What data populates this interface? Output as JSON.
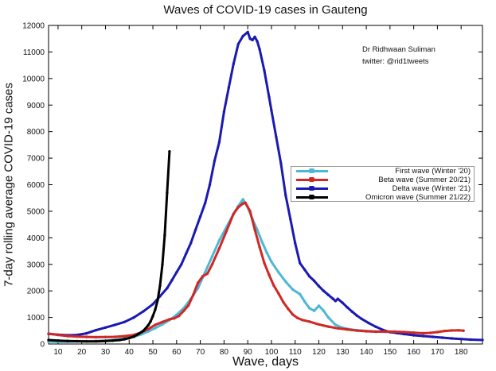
{
  "chart": {
    "title": "Waves of COVID-19 cases in Gauteng",
    "xlabel": "Wave, days",
    "ylabel": "7-day rolling average COVID-19 cases",
    "annotation": {
      "line1": "Dr Ridhwaan Suliman",
      "line2": "twitter: @rid1tweets"
    }
  },
  "legend": {
    "items": [
      {
        "label": "First wave (Winter '20)",
        "color": "#4db8d6"
      },
      {
        "label": "Beta wave (Summer 20/21)",
        "color": "#d02824"
      },
      {
        "label": "Delta wave (Winter '21)",
        "color": "#1a1ab2"
      },
      {
        "label": "Omicron wave (Summer 21/22)",
        "color": "#000000"
      }
    ]
  },
  "chart_data": {
    "type": "line",
    "title": "Waves of COVID-19 cases in Gauteng",
    "xlabel": "Wave, days",
    "ylabel": "7-day rolling average COVID-19 cases",
    "xlim": [
      6,
      189
    ],
    "ylim": [
      0,
      12000
    ],
    "xticks": [
      10,
      20,
      30,
      40,
      50,
      60,
      70,
      80,
      90,
      100,
      110,
      120,
      130,
      140,
      150,
      160,
      170,
      180
    ],
    "yticks": [
      0,
      1000,
      2000,
      3000,
      4000,
      5000,
      6000,
      7000,
      8000,
      9000,
      10000,
      11000,
      12000
    ],
    "grid": false,
    "legend_position": "center-right",
    "series": [
      {
        "id": "first-wave",
        "name": "First wave (Winter '20)",
        "color": "#4db8d6",
        "points": [
          [
            6,
            80
          ],
          [
            10,
            85
          ],
          [
            14,
            88
          ],
          [
            18,
            95
          ],
          [
            22,
            105
          ],
          [
            26,
            115
          ],
          [
            30,
            130
          ],
          [
            34,
            160
          ],
          [
            38,
            205
          ],
          [
            42,
            270
          ],
          [
            45,
            360
          ],
          [
            48,
            470
          ],
          [
            51,
            600
          ],
          [
            54,
            740
          ],
          [
            57,
            900
          ],
          [
            60,
            1100
          ],
          [
            63,
            1350
          ],
          [
            66,
            1700
          ],
          [
            69,
            2100
          ],
          [
            72,
            2700
          ],
          [
            75,
            3300
          ],
          [
            78,
            3900
          ],
          [
            81,
            4400
          ],
          [
            84,
            4900
          ],
          [
            86,
            5200
          ],
          [
            88,
            5450
          ],
          [
            90,
            5150
          ],
          [
            92,
            4700
          ],
          [
            94,
            4300
          ],
          [
            96,
            3850
          ],
          [
            98,
            3450
          ],
          [
            100,
            3100
          ],
          [
            103,
            2700
          ],
          [
            106,
            2350
          ],
          [
            109,
            2050
          ],
          [
            112,
            1880
          ],
          [
            114,
            1600
          ],
          [
            116,
            1350
          ],
          [
            118,
            1250
          ],
          [
            120,
            1440
          ],
          [
            122,
            1250
          ],
          [
            124,
            1000
          ],
          [
            127,
            720
          ],
          [
            130,
            610
          ],
          [
            134,
            540
          ],
          [
            138,
            505
          ],
          [
            142,
            480
          ],
          [
            146,
            465
          ],
          [
            150,
            450
          ]
        ]
      },
      {
        "id": "delta-wave",
        "name": "Delta wave (Winter '21)",
        "color": "#1a1ab2",
        "points": [
          [
            6,
            380
          ],
          [
            10,
            350
          ],
          [
            14,
            330
          ],
          [
            18,
            340
          ],
          [
            22,
            400
          ],
          [
            26,
            520
          ],
          [
            30,
            620
          ],
          [
            34,
            720
          ],
          [
            38,
            830
          ],
          [
            42,
            1000
          ],
          [
            46,
            1230
          ],
          [
            50,
            1500
          ],
          [
            53,
            1800
          ],
          [
            56,
            2100
          ],
          [
            58,
            2400
          ],
          [
            60,
            2700
          ],
          [
            62,
            3000
          ],
          [
            64,
            3400
          ],
          [
            66,
            3800
          ],
          [
            68,
            4300
          ],
          [
            70,
            4800
          ],
          [
            72,
            5300
          ],
          [
            74,
            6000
          ],
          [
            76,
            6900
          ],
          [
            78,
            7600
          ],
          [
            80,
            8750
          ],
          [
            82,
            9650
          ],
          [
            84,
            10550
          ],
          [
            86,
            11300
          ],
          [
            88,
            11600
          ],
          [
            90,
            11750
          ],
          [
            91,
            11500
          ],
          [
            92,
            11450
          ],
          [
            93,
            11570
          ],
          [
            94,
            11400
          ],
          [
            95,
            11100
          ],
          [
            97,
            10300
          ],
          [
            99,
            9300
          ],
          [
            100,
            8800
          ],
          [
            102,
            7800
          ],
          [
            104,
            6800
          ],
          [
            106,
            5600
          ],
          [
            108,
            4700
          ],
          [
            110,
            3800
          ],
          [
            112,
            3050
          ],
          [
            114,
            2800
          ],
          [
            116,
            2550
          ],
          [
            118,
            2380
          ],
          [
            120,
            2180
          ],
          [
            122,
            2000
          ],
          [
            124,
            1850
          ],
          [
            126,
            1700
          ],
          [
            127,
            1620
          ],
          [
            128,
            1700
          ],
          [
            130,
            1550
          ],
          [
            132,
            1380
          ],
          [
            134,
            1220
          ],
          [
            136,
            1070
          ],
          [
            138,
            950
          ],
          [
            141,
            790
          ],
          [
            144,
            650
          ],
          [
            147,
            530
          ],
          [
            150,
            450
          ],
          [
            153,
            410
          ],
          [
            156,
            375
          ],
          [
            160,
            330
          ],
          [
            164,
            300
          ],
          [
            168,
            270
          ],
          [
            172,
            240
          ],
          [
            176,
            210
          ],
          [
            180,
            185
          ],
          [
            184,
            165
          ],
          [
            189,
            150
          ]
        ]
      },
      {
        "id": "beta-wave",
        "name": "Beta wave (Summer 20/21)",
        "color": "#d02824",
        "points": [
          [
            6,
            390
          ],
          [
            10,
            340
          ],
          [
            14,
            300
          ],
          [
            18,
            280
          ],
          [
            22,
            265
          ],
          [
            26,
            258
          ],
          [
            30,
            262
          ],
          [
            34,
            270
          ],
          [
            38,
            295
          ],
          [
            42,
            340
          ],
          [
            45,
            430
          ],
          [
            48,
            560
          ],
          [
            51,
            720
          ],
          [
            54,
            830
          ],
          [
            57,
            930
          ],
          [
            59,
            965
          ],
          [
            61,
            1060
          ],
          [
            63,
            1250
          ],
          [
            65,
            1450
          ],
          [
            67,
            1850
          ],
          [
            69,
            2300
          ],
          [
            71,
            2550
          ],
          [
            73,
            2650
          ],
          [
            75,
            3000
          ],
          [
            78,
            3600
          ],
          [
            81,
            4250
          ],
          [
            84,
            4900
          ],
          [
            86,
            5150
          ],
          [
            88,
            5290
          ],
          [
            89,
            5320
          ],
          [
            91,
            5000
          ],
          [
            93,
            4300
          ],
          [
            95,
            3650
          ],
          [
            97,
            3050
          ],
          [
            99,
            2600
          ],
          [
            101,
            2200
          ],
          [
            103,
            1900
          ],
          [
            105,
            1580
          ],
          [
            107,
            1330
          ],
          [
            109,
            1110
          ],
          [
            111,
            980
          ],
          [
            113,
            905
          ],
          [
            116,
            845
          ],
          [
            120,
            735
          ],
          [
            124,
            655
          ],
          [
            128,
            590
          ],
          [
            132,
            545
          ],
          [
            136,
            505
          ],
          [
            140,
            480
          ],
          [
            144,
            465
          ],
          [
            148,
            470
          ],
          [
            152,
            465
          ],
          [
            156,
            450
          ],
          [
            160,
            425
          ],
          [
            164,
            405
          ],
          [
            167,
            420
          ],
          [
            170,
            450
          ],
          [
            173,
            490
          ],
          [
            176,
            510
          ],
          [
            179,
            515
          ],
          [
            181,
            500
          ]
        ]
      },
      {
        "id": "omicron-wave",
        "name": "Omicron wave (Summer 21/22)",
        "color": "#000000",
        "points": [
          [
            6,
            150
          ],
          [
            10,
            130
          ],
          [
            14,
            115
          ],
          [
            18,
            105
          ],
          [
            22,
            100
          ],
          [
            26,
            100
          ],
          [
            30,
            110
          ],
          [
            33,
            125
          ],
          [
            36,
            150
          ],
          [
            38,
            180
          ],
          [
            40,
            220
          ],
          [
            42,
            280
          ],
          [
            44,
            380
          ],
          [
            46,
            500
          ],
          [
            48,
            700
          ],
          [
            49,
            850
          ],
          [
            50,
            1050
          ],
          [
            51,
            1300
          ],
          [
            52,
            1650
          ],
          [
            53,
            2200
          ],
          [
            54,
            3000
          ],
          [
            55,
            4100
          ],
          [
            56,
            5700
          ],
          [
            57,
            7250
          ]
        ]
      }
    ]
  }
}
